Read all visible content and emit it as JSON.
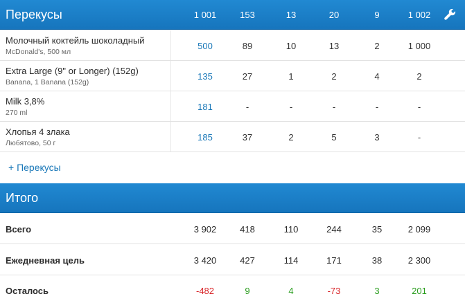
{
  "snacks": {
    "title": "Перекусы",
    "totals": [
      "1 001",
      "153",
      "13",
      "20",
      "9",
      "1 002"
    ],
    "settings_icon": "wrench-icon",
    "foods": [
      {
        "name": "Молочный коктейль шоколадный",
        "detail": "McDonald's, 500 мл",
        "values": [
          "500",
          "89",
          "10",
          "13",
          "2",
          "1 000"
        ]
      },
      {
        "name": "Extra Large (9\" or Longer) (152g)",
        "detail": "Banana, 1 Banana (152g)",
        "values": [
          "135",
          "27",
          "1",
          "2",
          "4",
          "2"
        ]
      },
      {
        "name": "Milk 3,8%",
        "detail": "270 ml",
        "values": [
          "181",
          "-",
          "-",
          "-",
          "-",
          "-"
        ]
      },
      {
        "name": "Хлопья 4 злака",
        "detail": "Любятово, 50 г",
        "values": [
          "185",
          "37",
          "2",
          "5",
          "3",
          "-"
        ]
      }
    ],
    "add_label": "+ Перекусы"
  },
  "summary": {
    "title": "Итого",
    "rows": [
      {
        "label": "Всего",
        "values": [
          "3 902",
          "418",
          "110",
          "244",
          "35",
          "2 099"
        ]
      },
      {
        "label": "Ежедневная цель",
        "values": [
          "3 420",
          "427",
          "114",
          "171",
          "38",
          "2 300"
        ]
      },
      {
        "label": "Осталось",
        "values": [
          "-482",
          "9",
          "4",
          "-73",
          "3",
          "201"
        ]
      }
    ]
  },
  "colors": {
    "header_blue": "#1a7fc8",
    "link_blue": "#1a78b8",
    "negative_red": "#d9282c",
    "positive_green": "#2a9d1e"
  }
}
